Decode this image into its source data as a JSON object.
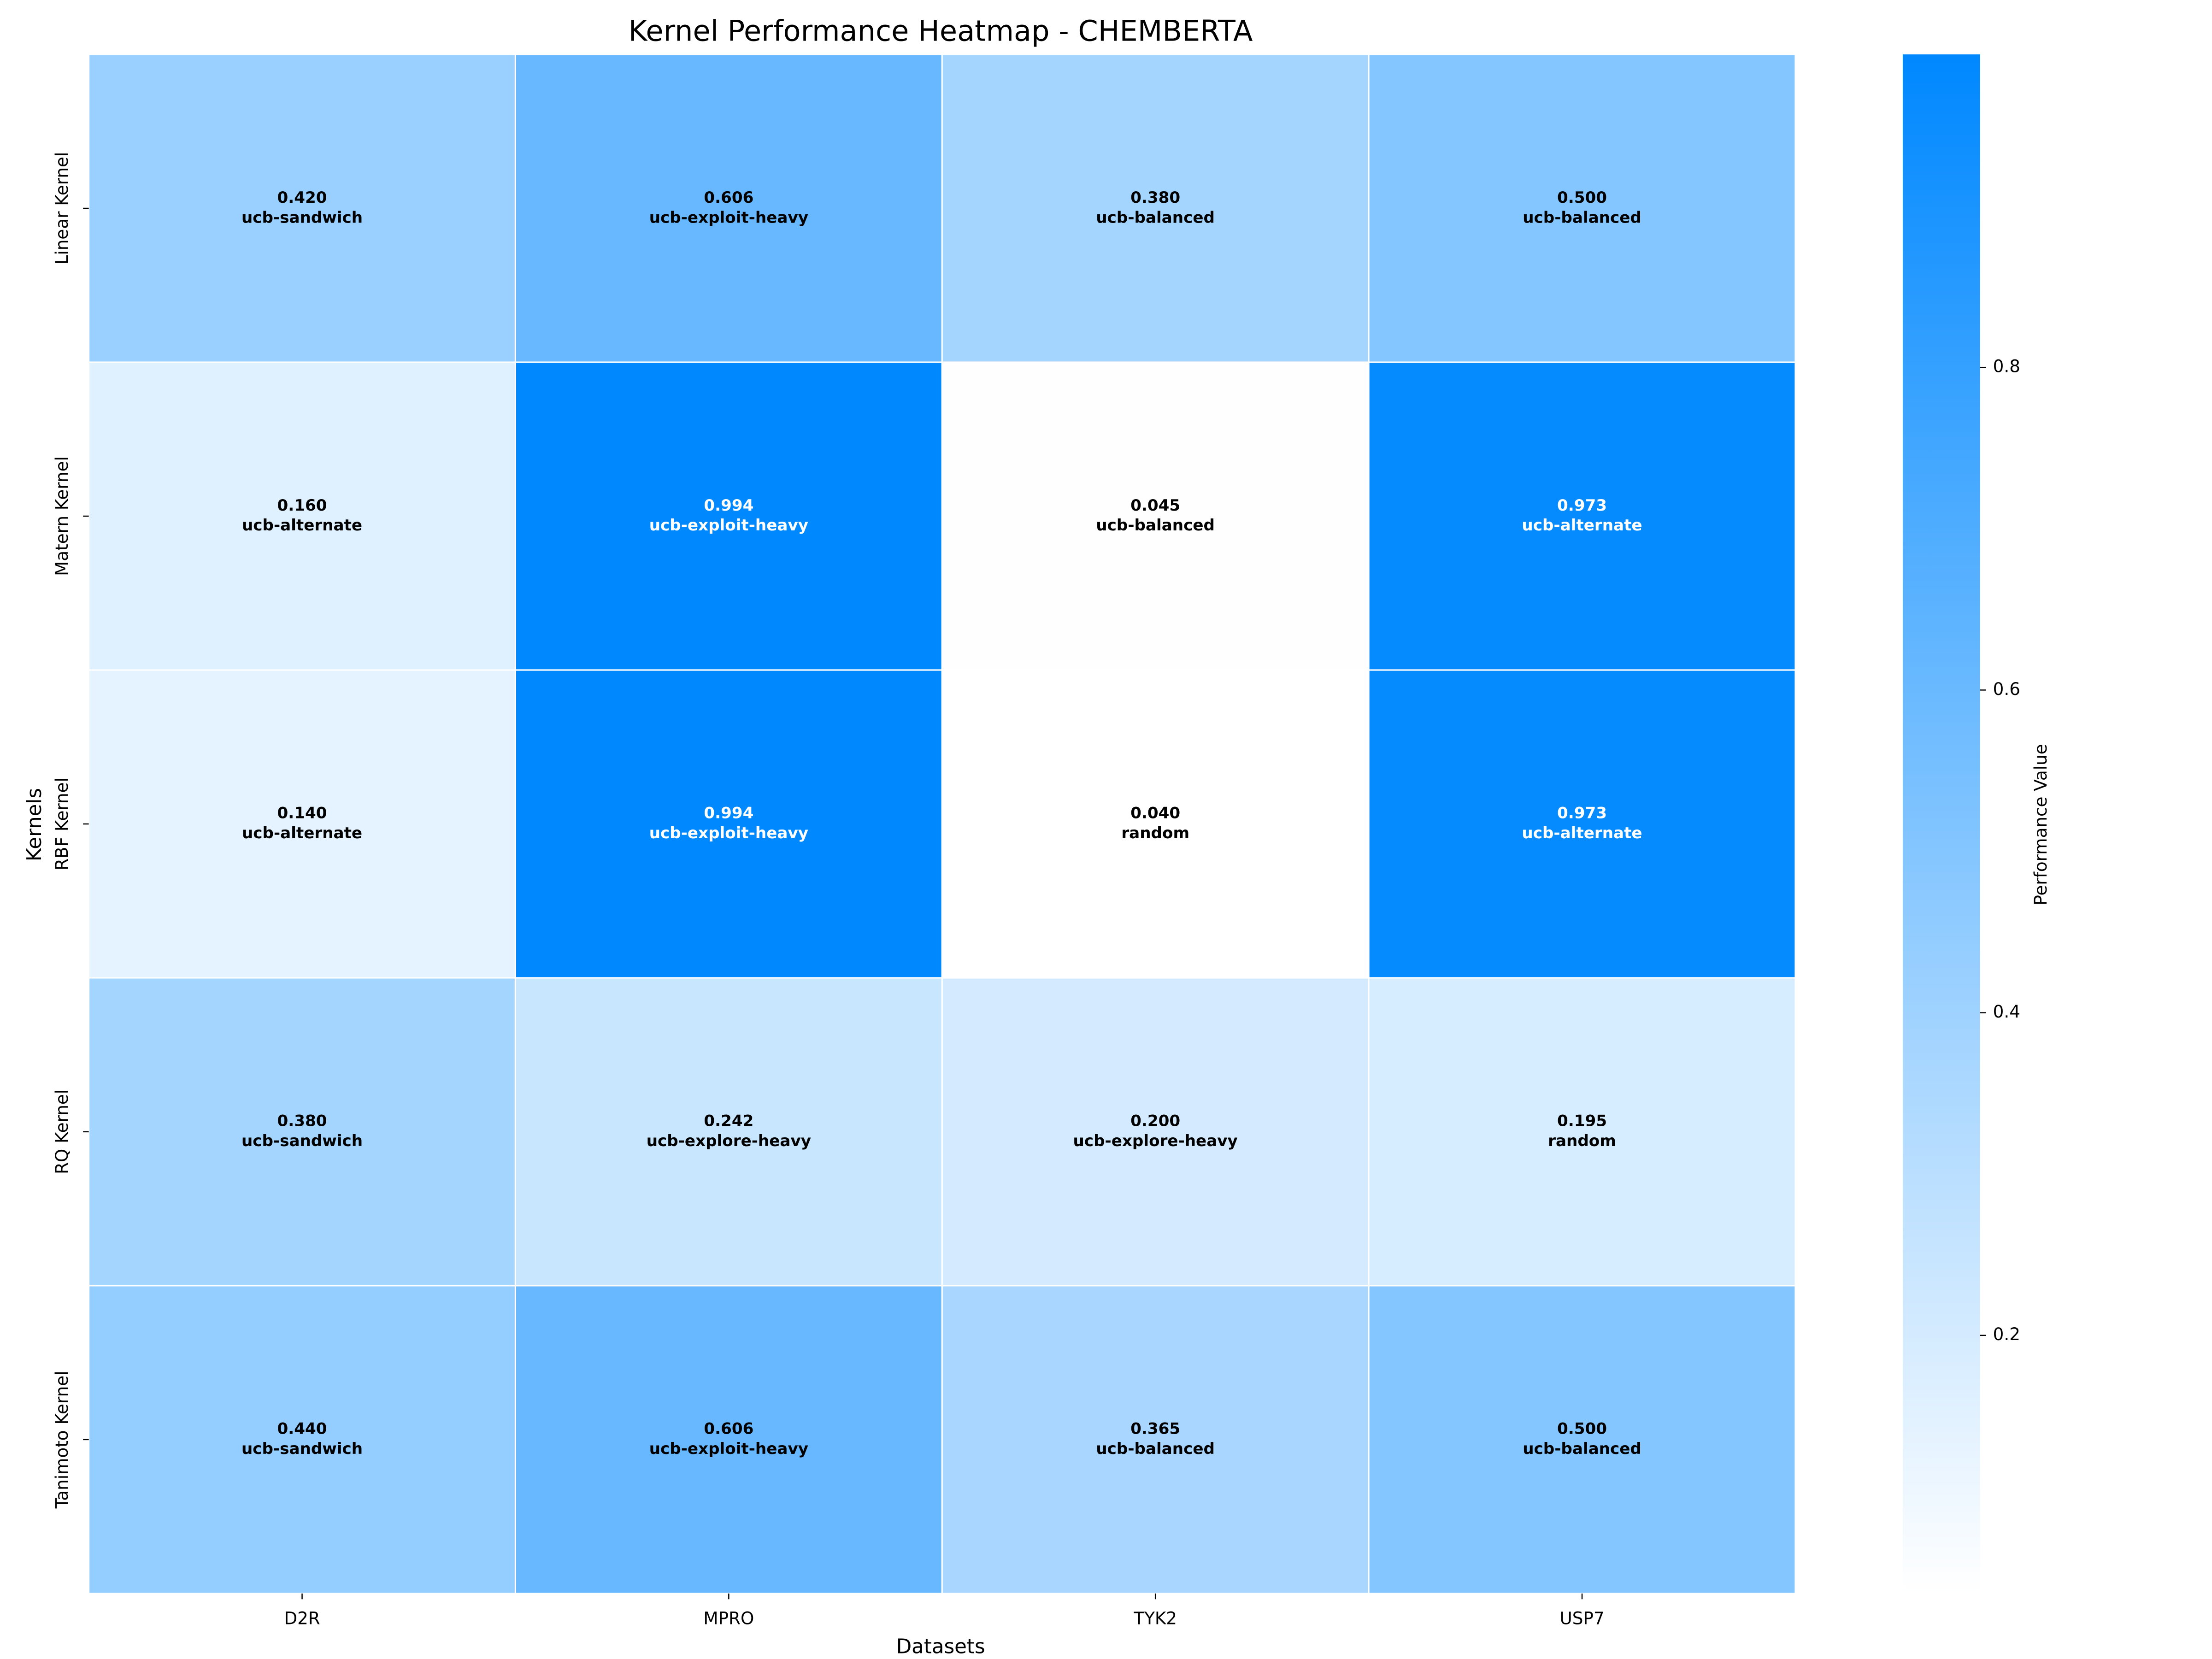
{
  "chart_data": {
    "type": "heatmap",
    "title": "Kernel Performance Heatmap - CHEMBERTA",
    "x_label": "Datasets",
    "y_label": "Kernels",
    "x_categories": [
      "D2R",
      "MPRO",
      "TYK2",
      "USP7"
    ],
    "y_categories": [
      "Linear Kernel",
      "Matern Kernel",
      "RBF Kernel",
      "RQ Kernel",
      "Tanimoto Kernel"
    ],
    "values": [
      [
        0.42,
        0.606,
        0.38,
        0.5
      ],
      [
        0.16,
        0.994,
        0.045,
        0.973
      ],
      [
        0.14,
        0.994,
        0.04,
        0.973
      ],
      [
        0.38,
        0.242,
        0.2,
        0.195
      ],
      [
        0.44,
        0.606,
        0.365,
        0.5
      ]
    ],
    "value_labels": [
      [
        "0.420",
        "0.606",
        "0.380",
        "0.500"
      ],
      [
        "0.160",
        "0.994",
        "0.045",
        "0.973"
      ],
      [
        "0.140",
        "0.994",
        "0.040",
        "0.973"
      ],
      [
        "0.380",
        "0.242",
        "0.200",
        "0.195"
      ],
      [
        "0.440",
        "0.606",
        "0.365",
        "0.500"
      ]
    ],
    "annotations": [
      [
        "ucb-sandwich",
        "ucb-exploit-heavy",
        "ucb-balanced",
        "ucb-balanced"
      ],
      [
        "ucb-alternate",
        "ucb-exploit-heavy",
        "ucb-balanced",
        "ucb-alternate"
      ],
      [
        "ucb-alternate",
        "ucb-exploit-heavy",
        "random",
        "ucb-alternate"
      ],
      [
        "ucb-sandwich",
        "ucb-explore-heavy",
        "ucb-explore-heavy",
        "random"
      ],
      [
        "ucb-sandwich",
        "ucb-exploit-heavy",
        "ucb-balanced",
        "ucb-balanced"
      ]
    ],
    "colorbar_label": "Performance Value",
    "clim": [
      0.04,
      0.994
    ],
    "cticks": [
      0.2,
      0.4,
      0.6,
      0.8
    ],
    "colors": [
      "#ffffff",
      "#0088ff"
    ]
  }
}
